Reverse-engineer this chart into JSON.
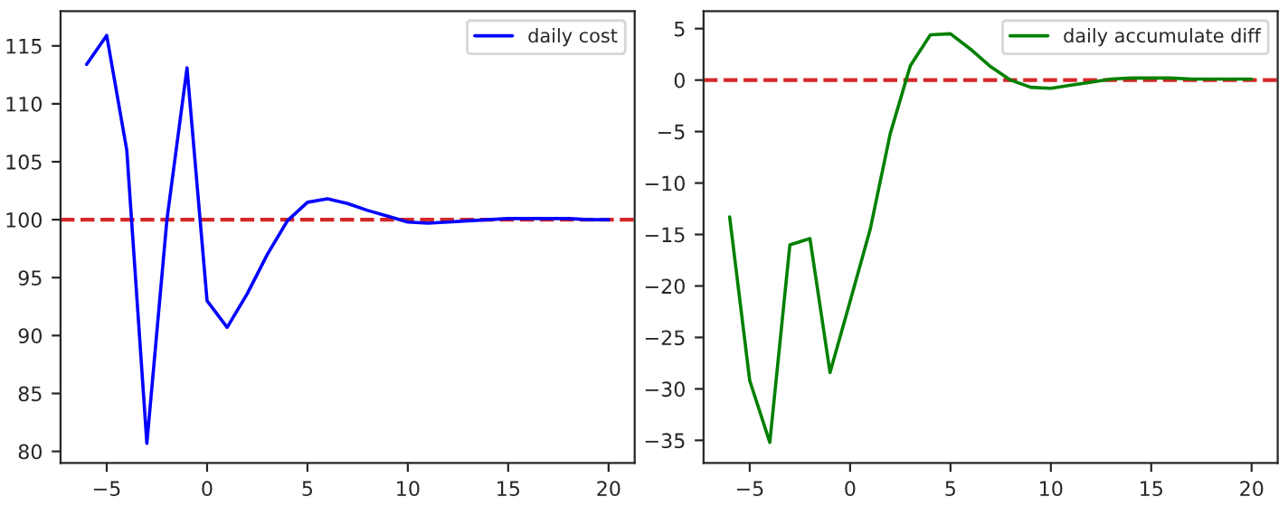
{
  "chart_data": [
    {
      "type": "line",
      "x": [
        -6,
        -5,
        -4,
        -3,
        -2,
        -1,
        0,
        1,
        2,
        3,
        4,
        5,
        6,
        7,
        8,
        9,
        10,
        11,
        12,
        13,
        14,
        15,
        16,
        17,
        18,
        19,
        20
      ],
      "series": [
        {
          "name": "daily cost",
          "color": "#0000ff",
          "values": [
            113.4,
            115.9,
            106,
            80.7,
            100,
            113.1,
            93,
            90.7,
            93.6,
            97,
            99.9,
            101.5,
            101.8,
            101.4,
            100.8,
            100.3,
            99.8,
            99.7,
            99.8,
            99.9,
            100,
            100.1,
            100.1,
            100.1,
            100.1,
            100,
            100
          ]
        }
      ],
      "xlim": [
        -7.3,
        21.3
      ],
      "xticks": [
        {
          "value": -5,
          "label": "−5"
        },
        0,
        5,
        10,
        15,
        20
      ],
      "ylim": [
        79,
        118
      ],
      "yticks": [
        80,
        85,
        90,
        95,
        100,
        105,
        110,
        115
      ],
      "ref_lines": [
        {
          "axis": "y",
          "value": 100,
          "color": "#d62728",
          "line_style": "dashed"
        }
      ],
      "legend": "top right",
      "grid": false
    },
    {
      "type": "line",
      "x": [
        -6,
        -5,
        -4,
        -3,
        -2,
        -1,
        0,
        1,
        2,
        3,
        4,
        5,
        6,
        7,
        8,
        9,
        10,
        11,
        12,
        13,
        14,
        15,
        16,
        17,
        18,
        19,
        20
      ],
      "series": [
        {
          "name": "daily accumulate diff",
          "color": "#008000",
          "values": [
            -13.3,
            -29.2,
            -35.2,
            -16,
            -15.4,
            -28.4,
            -21.5,
            -14.5,
            -5.2,
            1.4,
            4.4,
            4.5,
            3,
            1.3,
            0,
            -0.7,
            -0.8,
            -0.5,
            -0.2,
            0.1,
            0.2,
            0.2,
            0.2,
            0.1,
            0.1,
            0.1,
            0.1
          ]
        }
      ],
      "xlim": [
        -7.3,
        21.3
      ],
      "xticks": [
        {
          "value": -5,
          "label": "−5"
        },
        0,
        5,
        10,
        15,
        20
      ],
      "ylim": [
        -37.2,
        6.7
      ],
      "yticks": [
        {
          "value": -35,
          "label": "−35"
        },
        {
          "value": -30,
          "label": "−30"
        },
        {
          "value": -25,
          "label": "−25"
        },
        {
          "value": -20,
          "label": "−20"
        },
        {
          "value": -15,
          "label": "−15"
        },
        {
          "value": -10,
          "label": "−10"
        },
        {
          "value": -5,
          "label": "−5"
        },
        0,
        5
      ],
      "ref_lines": [
        {
          "axis": "y",
          "value": 0,
          "color": "#d62728",
          "line_style": "dashed"
        }
      ],
      "legend": "top right",
      "grid": false
    }
  ]
}
